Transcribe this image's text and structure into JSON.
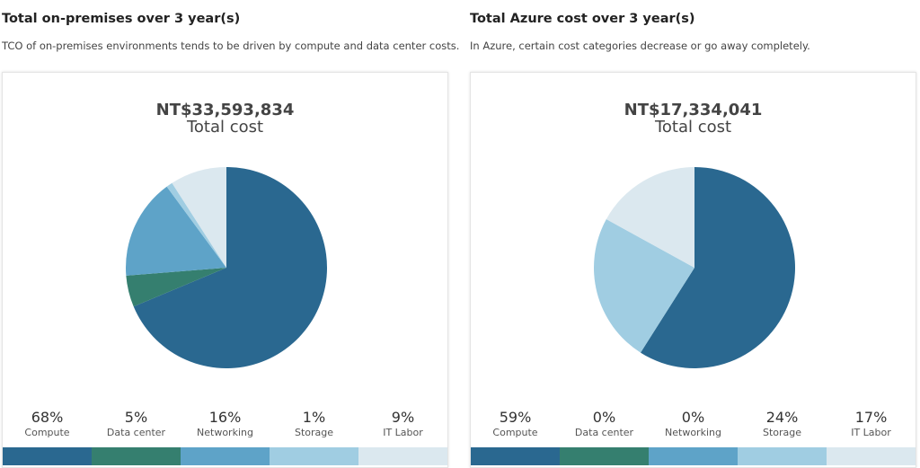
{
  "chart_data": [
    {
      "type": "pie",
      "title": "Total on-premises over 3 year(s)",
      "subtitle": "TCO of on-premises environments tends to be driven by compute and data center costs.",
      "total_value": "NT$33,593,834",
      "total_label": "Total cost",
      "categories": [
        "Compute",
        "Data center",
        "Networking",
        "Storage",
        "IT Labor"
      ],
      "values": [
        68,
        5,
        16,
        1,
        9
      ],
      "value_labels": [
        "68%",
        "5%",
        "16%",
        "1%",
        "9%"
      ],
      "colors": [
        "#2a6890",
        "#357f6f",
        "#5ea3c8",
        "#a0cde2",
        "#dbe8ef"
      ]
    },
    {
      "type": "pie",
      "title": "Total Azure cost over 3 year(s)",
      "subtitle": "In Azure, certain cost categories decrease or go away completely.",
      "total_value": "NT$17,334,041",
      "total_label": "Total cost",
      "categories": [
        "Compute",
        "Data center",
        "Networking",
        "Storage",
        "IT Labor"
      ],
      "values": [
        59,
        0,
        0,
        24,
        17
      ],
      "value_labels": [
        "59%",
        "0%",
        "0%",
        "24%",
        "17%"
      ],
      "colors": [
        "#2a6890",
        "#357f6f",
        "#5ea3c8",
        "#a0cde2",
        "#dbe8ef"
      ]
    }
  ]
}
